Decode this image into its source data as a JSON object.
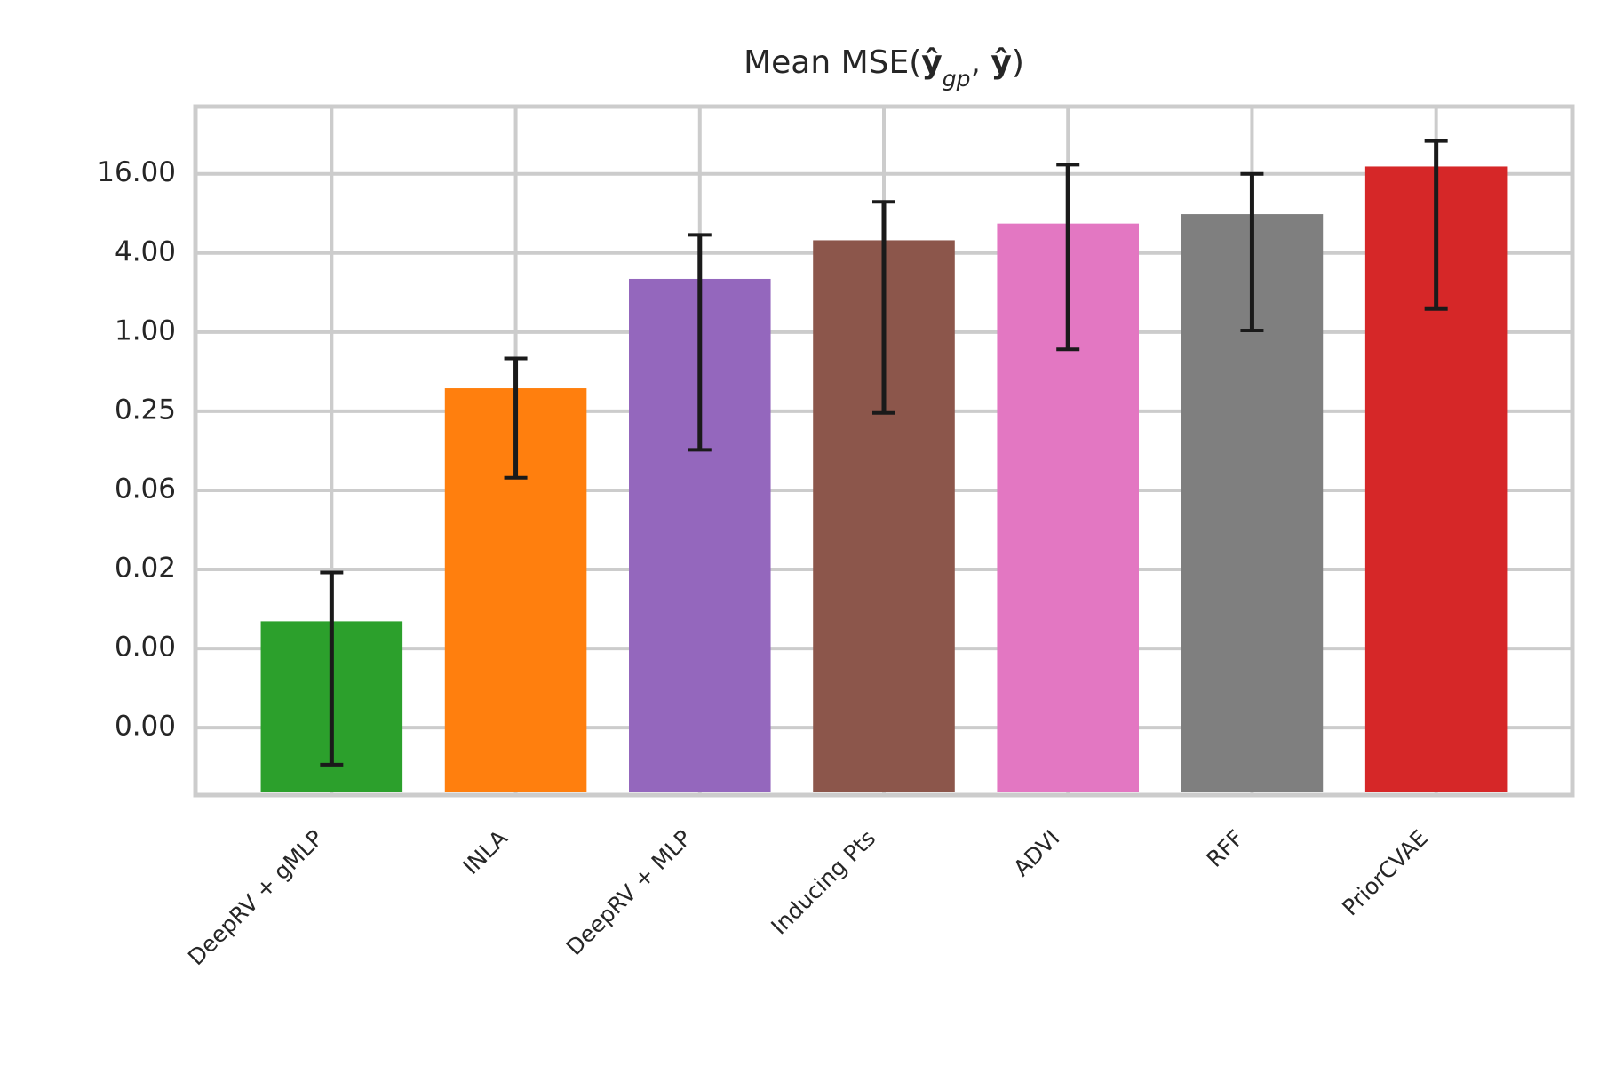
{
  "chart_data": {
    "type": "bar",
    "title": [
      {
        "text": "Mean MSE("
      },
      {
        "text": "ŷ",
        "bold": true
      },
      {
        "text": "gp",
        "sub": true
      },
      {
        "text": ", "
      },
      {
        "text": "ŷ",
        "bold": true
      },
      {
        "text": ")"
      }
    ],
    "categories": [
      "DeepRV + gMLP",
      "INLA",
      "DeepRV + MLP",
      "Inducing Pts",
      "ADVI",
      "RFF",
      "PriorCVAE"
    ],
    "values": [
      0.0063,
      0.374,
      2.54,
      5.0,
      6.7,
      7.9,
      18.2
    ],
    "err_low": [
      0.00051,
      0.078,
      0.127,
      0.243,
      0.74,
      1.03,
      1.5
    ],
    "err_high": [
      0.0148,
      0.63,
      5.5,
      9.8,
      18.8,
      16,
      28.5
    ],
    "colors": [
      "#2ca02c",
      "#ff7f0e",
      "#9467bd",
      "#8c564b",
      "#e377c2",
      "#7f7f7f",
      "#d62728"
    ],
    "log_scale": true,
    "log_base": 2,
    "ylim": [
      0.0003,
      52
    ],
    "yticks": [
      {
        "value": 16,
        "label": "16.00"
      },
      {
        "value": 4,
        "label": "4.00"
      },
      {
        "value": 1,
        "label": "1.00"
      },
      {
        "value": 0.25,
        "label": "0.25"
      },
      {
        "value": 0.0625,
        "label": "0.06"
      },
      {
        "value": 0.015625,
        "label": "0.02"
      },
      {
        "value": 0.00390625,
        "label": "0.00"
      },
      {
        "value": 0.0009765625,
        "label": "0.00"
      }
    ],
    "grid": true
  }
}
